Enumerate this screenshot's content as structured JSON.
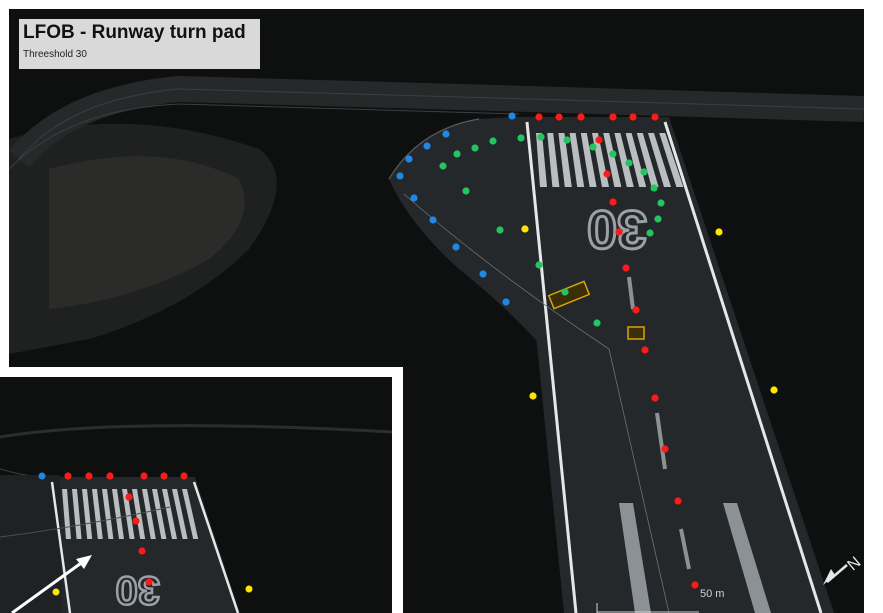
{
  "title": "LFOB - Runway turn pad",
  "subtitle": "Threeshold 30",
  "runway_marking": "30",
  "north_label": "N",
  "scale_label": "50 m",
  "colors": {
    "background": "#0b0c0c",
    "asphalt": "#262a2d",
    "grass": "#141616",
    "line_white": "#e6e6e6",
    "dot_red": "#ff1a1a",
    "dot_green": "#22c55e",
    "dot_blue": "#1e88e5",
    "dot_yellow": "#ffe600",
    "title_box": "#d9d9d9",
    "sign_yellow": "#d9a400"
  },
  "legend_icons": [
    "north-arrow-icon",
    "direction-arrow-icon"
  ]
}
